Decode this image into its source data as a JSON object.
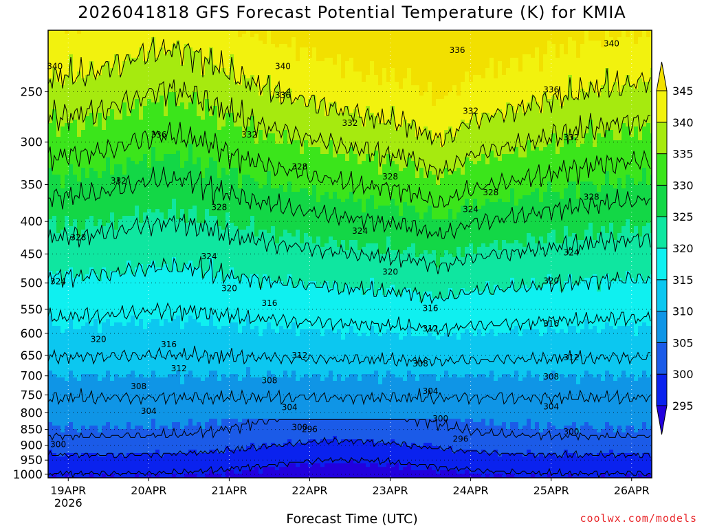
{
  "title": "2026041818 GFS Forecast Potential Temperature (K) for KMIA",
  "xlabel": "Forecast Time (UTC)",
  "credit": "coolwx.com/models",
  "chart_data": {
    "type": "contour",
    "y_axis": {
      "quantity": "pressure",
      "scale": "log",
      "inverted": true,
      "ylim": [
        1013,
        200
      ],
      "ticks": [
        250,
        300,
        350,
        400,
        450,
        500,
        550,
        600,
        650,
        700,
        750,
        800,
        850,
        900,
        950,
        1000
      ]
    },
    "x_axis": {
      "ticks": [
        {
          "date": "2026-04-19T00",
          "label": "19APR",
          "sub": "2026"
        },
        {
          "date": "2026-04-20T00",
          "label": "20APR",
          "sub": ""
        },
        {
          "date": "2026-04-21T00",
          "label": "21APR",
          "sub": ""
        },
        {
          "date": "2026-04-22T00",
          "label": "22APR",
          "sub": ""
        },
        {
          "date": "2026-04-23T00",
          "label": "23APR",
          "sub": ""
        },
        {
          "date": "2026-04-24T00",
          "label": "24APR",
          "sub": ""
        },
        {
          "date": "2026-04-25T00",
          "label": "25APR",
          "sub": ""
        },
        {
          "date": "2026-04-26T00",
          "label": "26APR",
          "sub": ""
        }
      ],
      "range": [
        "2026-04-18T18",
        "2026-04-26T06"
      ]
    },
    "grid": true,
    "colorbar": {
      "placement": "right",
      "levels": [
        295,
        300,
        305,
        310,
        315,
        320,
        325,
        330,
        335,
        340,
        345
      ],
      "colors": [
        "#2200dd",
        "#0a22ee",
        "#1b5be8",
        "#0f95e6",
        "#0cc7f0",
        "#0ff0f0",
        "#0fe6a0",
        "#13d746",
        "#3be51b",
        "#a6ea0f",
        "#f2f20e",
        "#f2e000"
      ]
    },
    "contour_interval": 4,
    "contour_labels": [
      {
        "date": "2026-04-18T20",
        "p": 228,
        "v": "340"
      },
      {
        "date": "2026-04-21T16",
        "p": 228,
        "v": "340"
      },
      {
        "date": "2026-04-23T20",
        "p": 215,
        "v": "336"
      },
      {
        "date": "2026-04-25T18",
        "p": 210,
        "v": "340"
      },
      {
        "date": "2026-04-21T16",
        "p": 253,
        "v": "336"
      },
      {
        "date": "2026-04-25T00",
        "p": 248,
        "v": "336"
      },
      {
        "date": "2026-04-24T00",
        "p": 268,
        "v": "332"
      },
      {
        "date": "2026-04-20T03",
        "p": 292,
        "v": "336"
      },
      {
        "date": "2026-04-21T06",
        "p": 292,
        "v": "332"
      },
      {
        "date": "2026-04-22T12",
        "p": 280,
        "v": "332"
      },
      {
        "date": "2026-04-25T06",
        "p": 295,
        "v": "332"
      },
      {
        "date": "2026-04-21T21",
        "p": 328,
        "v": "328"
      },
      {
        "date": "2026-04-23T00",
        "p": 340,
        "v": "328"
      },
      {
        "date": "2026-04-19T15",
        "p": 345,
        "v": "332"
      },
      {
        "date": "2026-04-24T06",
        "p": 360,
        "v": "328"
      },
      {
        "date": "2026-04-25T12",
        "p": 366,
        "v": "328"
      },
      {
        "date": "2026-04-20T21",
        "p": 380,
        "v": "328"
      },
      {
        "date": "2026-04-24T00",
        "p": 383,
        "v": "324"
      },
      {
        "date": "2026-04-22T15",
        "p": 414,
        "v": "324"
      },
      {
        "date": "2026-04-19T03",
        "p": 424,
        "v": "328"
      },
      {
        "date": "2026-04-25T06",
        "p": 448,
        "v": "324"
      },
      {
        "date": "2026-04-20T18",
        "p": 454,
        "v": "324"
      },
      {
        "date": "2026-04-23T00",
        "p": 480,
        "v": "320"
      },
      {
        "date": "2026-04-18T21",
        "p": 497,
        "v": "324"
      },
      {
        "date": "2026-04-25T00",
        "p": 496,
        "v": "320"
      },
      {
        "date": "2026-04-21T00",
        "p": 510,
        "v": "320"
      },
      {
        "date": "2026-04-21T12",
        "p": 538,
        "v": "316"
      },
      {
        "date": "2026-04-23T12",
        "p": 548,
        "v": "316"
      },
      {
        "date": "2026-04-25T00",
        "p": 580,
        "v": "316"
      },
      {
        "date": "2026-04-23T12",
        "p": 590,
        "v": "312"
      },
      {
        "date": "2026-04-19T09",
        "p": 613,
        "v": "320"
      },
      {
        "date": "2026-04-20T06",
        "p": 625,
        "v": "316"
      },
      {
        "date": "2026-04-21T21",
        "p": 650,
        "v": "312"
      },
      {
        "date": "2026-04-25T06",
        "p": 655,
        "v": "312"
      },
      {
        "date": "2026-04-20T09",
        "p": 682,
        "v": "312"
      },
      {
        "date": "2026-04-23T09",
        "p": 670,
        "v": "308"
      },
      {
        "date": "2026-04-21T12",
        "p": 712,
        "v": "308"
      },
      {
        "date": "2026-04-25T00",
        "p": 702,
        "v": "308"
      },
      {
        "date": "2026-04-19T21",
        "p": 727,
        "v": "308"
      },
      {
        "date": "2026-04-23T12",
        "p": 740,
        "v": "304"
      },
      {
        "date": "2026-04-21T18",
        "p": 785,
        "v": "304"
      },
      {
        "date": "2026-04-25T00",
        "p": 783,
        "v": "304"
      },
      {
        "date": "2026-04-20T00",
        "p": 795,
        "v": "304"
      },
      {
        "date": "2026-04-23T15",
        "p": 818,
        "v": "300"
      },
      {
        "date": "2026-04-21T21",
        "p": 843,
        "v": "300"
      },
      {
        "date": "2026-04-22T00",
        "p": 850,
        "v": "296"
      },
      {
        "date": "2026-04-25T06",
        "p": 857,
        "v": "300"
      },
      {
        "date": "2026-04-23T21",
        "p": 880,
        "v": "296"
      },
      {
        "date": "2026-04-18T21",
        "p": 898,
        "v": "300"
      }
    ]
  }
}
